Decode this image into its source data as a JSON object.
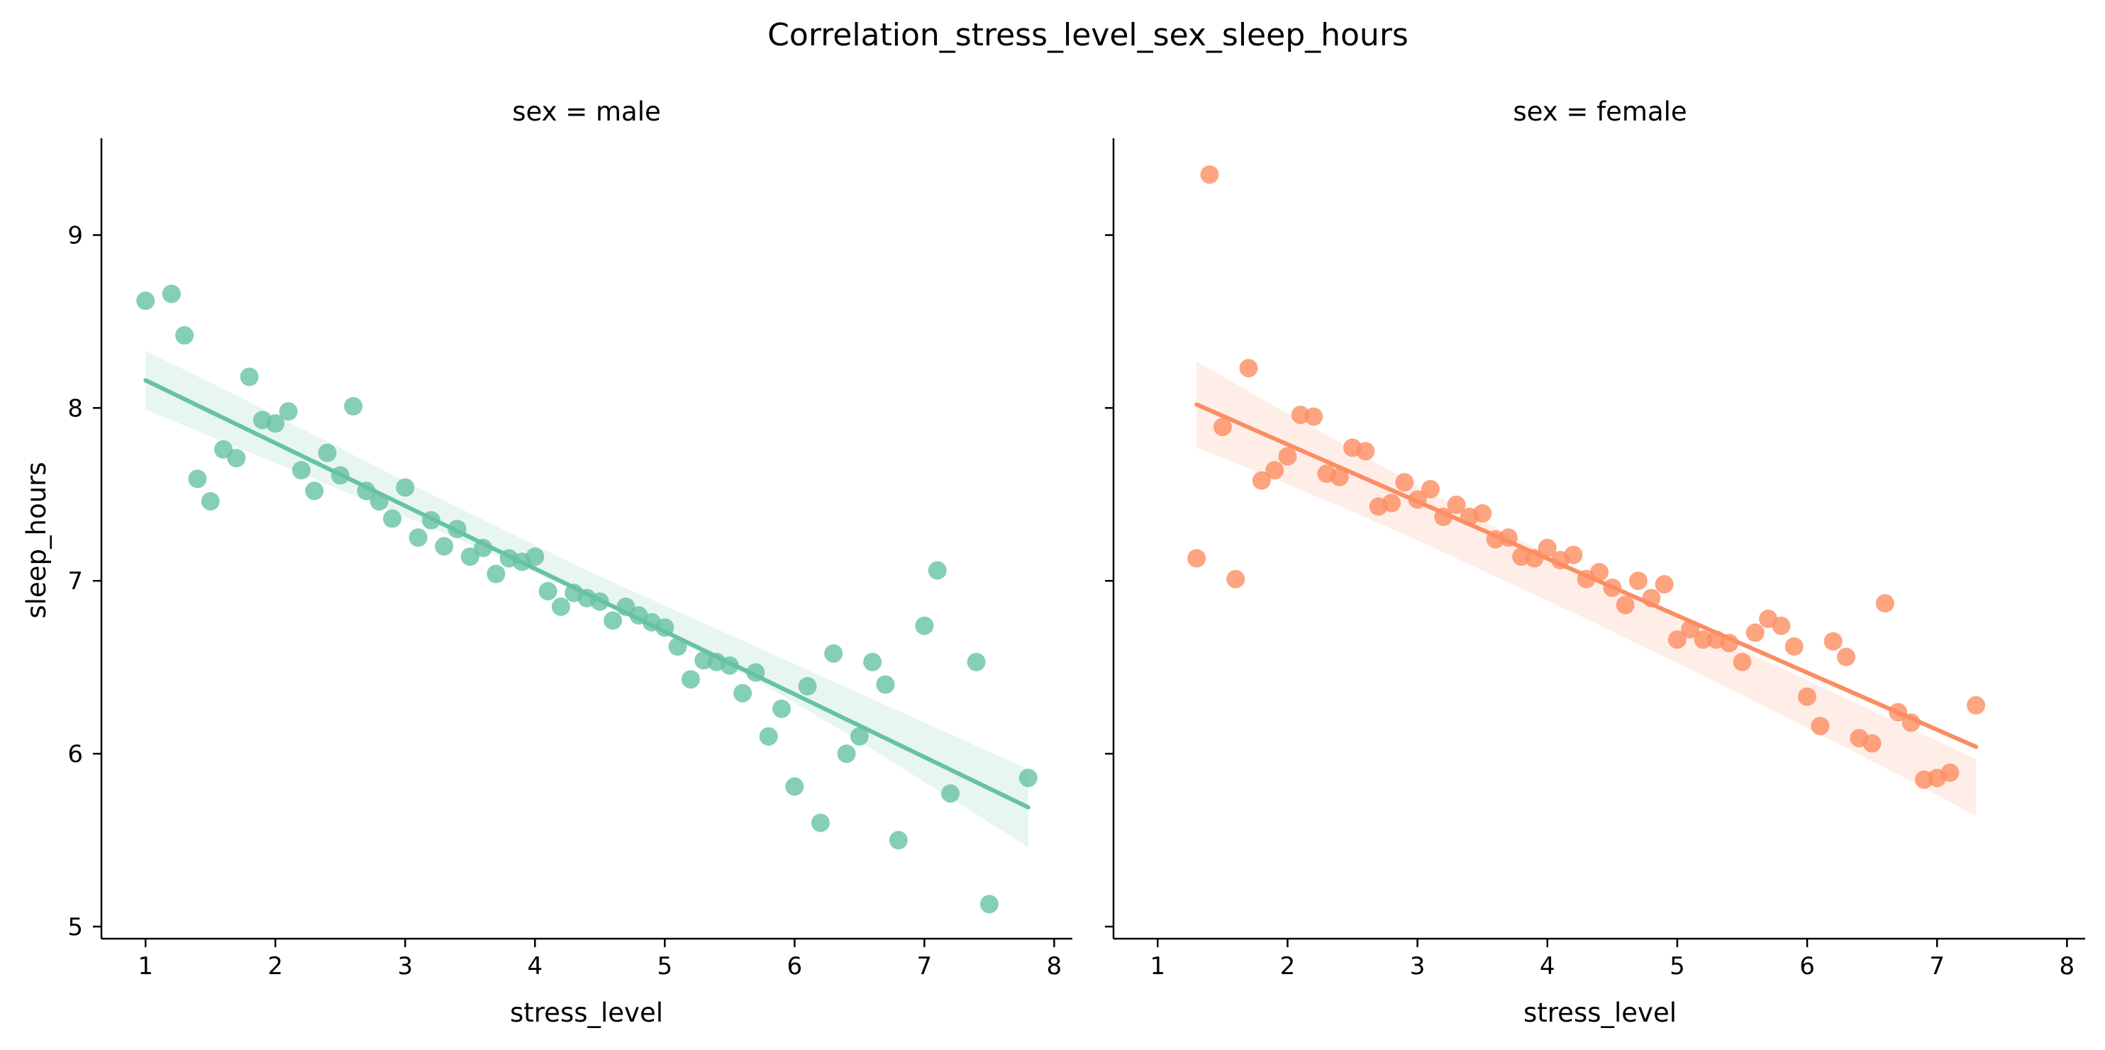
{
  "chart_data": {
    "type": "scatter",
    "title": "Correlation_stress_level_sex_sleep_hours",
    "xlabel": "stress_level",
    "ylabel": "sleep_hours",
    "xlim": [
      0.66,
      8.14
    ],
    "ylim": [
      4.93,
      9.56
    ],
    "x_ticks": [
      1,
      2,
      3,
      4,
      5,
      6,
      7,
      8
    ],
    "y_ticks": [
      5,
      6,
      7,
      8,
      9
    ],
    "grid": false,
    "legend": "none",
    "panels": [
      {
        "title": "sex = male",
        "color": "#66c2a5",
        "points": [
          [
            1.0,
            8.62
          ],
          [
            1.2,
            8.66
          ],
          [
            1.3,
            8.42
          ],
          [
            1.4,
            7.59
          ],
          [
            1.5,
            7.46
          ],
          [
            1.6,
            7.76
          ],
          [
            1.7,
            7.71
          ],
          [
            1.8,
            8.18
          ],
          [
            1.9,
            7.93
          ],
          [
            2.0,
            7.91
          ],
          [
            2.1,
            7.98
          ],
          [
            2.2,
            7.64
          ],
          [
            2.3,
            7.52
          ],
          [
            2.4,
            7.74
          ],
          [
            2.5,
            7.61
          ],
          [
            2.6,
            8.01
          ],
          [
            2.7,
            7.52
          ],
          [
            2.8,
            7.46
          ],
          [
            2.9,
            7.36
          ],
          [
            3.0,
            7.54
          ],
          [
            3.1,
            7.25
          ],
          [
            3.2,
            7.35
          ],
          [
            3.3,
            7.2
          ],
          [
            3.4,
            7.3
          ],
          [
            3.5,
            7.14
          ],
          [
            3.6,
            7.19
          ],
          [
            3.7,
            7.04
          ],
          [
            3.8,
            7.13
          ],
          [
            3.9,
            7.11
          ],
          [
            4.0,
            7.14
          ],
          [
            4.1,
            6.94
          ],
          [
            4.2,
            6.85
          ],
          [
            4.3,
            6.93
          ],
          [
            4.4,
            6.9
          ],
          [
            4.5,
            6.88
          ],
          [
            4.6,
            6.77
          ],
          [
            4.7,
            6.85
          ],
          [
            4.8,
            6.8
          ],
          [
            4.9,
            6.76
          ],
          [
            5.0,
            6.73
          ],
          [
            5.1,
            6.62
          ],
          [
            5.2,
            6.43
          ],
          [
            5.3,
            6.54
          ],
          [
            5.4,
            6.53
          ],
          [
            5.5,
            6.51
          ],
          [
            5.6,
            6.35
          ],
          [
            5.7,
            6.47
          ],
          [
            5.8,
            6.1
          ],
          [
            5.9,
            6.26
          ],
          [
            6.0,
            5.81
          ],
          [
            6.1,
            6.39
          ],
          [
            6.2,
            5.6
          ],
          [
            6.3,
            6.58
          ],
          [
            6.4,
            6.0
          ],
          [
            6.5,
            6.1
          ],
          [
            6.6,
            6.53
          ],
          [
            6.7,
            6.4
          ],
          [
            6.8,
            5.5
          ],
          [
            7.0,
            6.74
          ],
          [
            7.1,
            7.06
          ],
          [
            7.2,
            5.77
          ],
          [
            7.4,
            6.53
          ],
          [
            7.5,
            5.13
          ],
          [
            7.8,
            5.86
          ]
        ],
        "regression": {
          "x": [
            1.0,
            7.8
          ],
          "y": [
            8.16,
            5.69
          ],
          "ci_upper": [
            8.33,
            8.08,
            7.82,
            7.56,
            7.31,
            7.06,
            6.83,
            6.6,
            6.37,
            6.14,
            5.91
          ],
          "ci_lower": [
            7.99,
            7.78,
            7.57,
            7.36,
            7.14,
            6.91,
            6.66,
            6.4,
            6.1,
            5.78,
            5.46
          ]
        }
      },
      {
        "title": "sex = female",
        "color": "#fc8d62",
        "points": [
          [
            1.3,
            7.13
          ],
          [
            1.4,
            9.35
          ],
          [
            1.5,
            7.89
          ],
          [
            1.6,
            7.01
          ],
          [
            1.7,
            8.23
          ],
          [
            1.8,
            7.58
          ],
          [
            1.9,
            7.64
          ],
          [
            2.0,
            7.72
          ],
          [
            2.1,
            7.96
          ],
          [
            2.2,
            7.95
          ],
          [
            2.3,
            7.62
          ],
          [
            2.4,
            7.6
          ],
          [
            2.5,
            7.77
          ],
          [
            2.6,
            7.75
          ],
          [
            2.7,
            7.43
          ],
          [
            2.8,
            7.45
          ],
          [
            2.9,
            7.57
          ],
          [
            3.0,
            7.47
          ],
          [
            3.1,
            7.53
          ],
          [
            3.2,
            7.37
          ],
          [
            3.3,
            7.44
          ],
          [
            3.4,
            7.37
          ],
          [
            3.5,
            7.39
          ],
          [
            3.6,
            7.24
          ],
          [
            3.7,
            7.25
          ],
          [
            3.8,
            7.14
          ],
          [
            3.9,
            7.13
          ],
          [
            4.0,
            7.19
          ],
          [
            4.1,
            7.12
          ],
          [
            4.2,
            7.15
          ],
          [
            4.3,
            7.01
          ],
          [
            4.4,
            7.05
          ],
          [
            4.5,
            6.96
          ],
          [
            4.6,
            6.86
          ],
          [
            4.7,
            7.0
          ],
          [
            4.8,
            6.9
          ],
          [
            4.9,
            6.98
          ],
          [
            5.0,
            6.66
          ],
          [
            5.1,
            6.72
          ],
          [
            5.2,
            6.66
          ],
          [
            5.3,
            6.66
          ],
          [
            5.4,
            6.64
          ],
          [
            5.5,
            6.53
          ],
          [
            5.6,
            6.7
          ],
          [
            5.7,
            6.78
          ],
          [
            5.8,
            6.74
          ],
          [
            5.9,
            6.62
          ],
          [
            6.0,
            6.33
          ],
          [
            6.1,
            6.16
          ],
          [
            6.2,
            6.65
          ],
          [
            6.3,
            6.56
          ],
          [
            6.4,
            6.09
          ],
          [
            6.5,
            6.06
          ],
          [
            6.6,
            6.87
          ],
          [
            6.7,
            6.24
          ],
          [
            6.8,
            6.18
          ],
          [
            6.9,
            5.85
          ],
          [
            7.0,
            5.86
          ],
          [
            7.1,
            5.89
          ],
          [
            7.3,
            6.28
          ]
        ],
        "regression": {
          "x": [
            1.3,
            7.3
          ],
          "y": [
            8.02,
            6.04
          ],
          "ci_upper": [
            8.27,
            8.01,
            7.76,
            7.51,
            7.27,
            7.04,
            6.82,
            6.6,
            6.39,
            6.18,
            5.97
          ],
          "ci_lower": [
            7.77,
            7.59,
            7.4,
            7.2,
            6.99,
            6.78,
            6.56,
            6.34,
            6.11,
            5.88,
            5.64
          ]
        }
      }
    ]
  }
}
